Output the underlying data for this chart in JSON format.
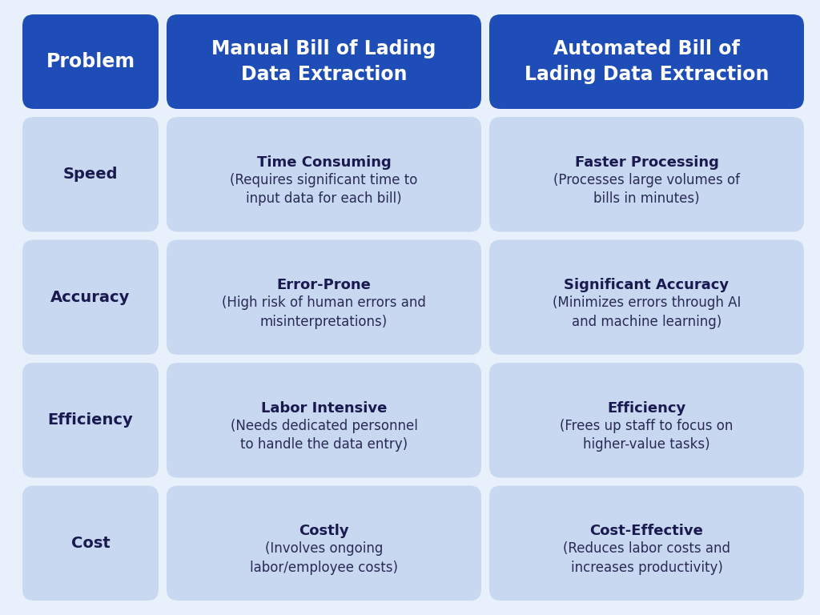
{
  "background_color": "#e8f0fb",
  "header_bg_color": "#1e4db7",
  "header_text_color": "#ffffff",
  "cell_bg_color": "#c8d8f0",
  "cell_text_bold_color": "#1a1a50",
  "cell_text_normal_color": "#2a2a55",
  "col1_label": "Problem",
  "col2_label": "Manual Bill of Lading\nData Extraction",
  "col3_label": "Automated Bill of\nLading Data Extraction",
  "rows": [
    {
      "problem": "Speed",
      "manual_bold": "Time Consuming",
      "manual_detail": "(Requires significant time to\ninput data for each bill)",
      "auto_bold": "Faster Processing",
      "auto_detail": "(Processes large volumes of\nbills in minutes)"
    },
    {
      "problem": "Accuracy",
      "manual_bold": "Error-Prone",
      "manual_detail": "(High risk of human errors and\nmisinterpretations)",
      "auto_bold": "Significant Accuracy",
      "auto_detail": "(Minimizes errors through AI\nand machine learning)"
    },
    {
      "problem": "Efficiency",
      "manual_bold": "Labor Intensive",
      "manual_detail": "(Needs dedicated personnel\nto handle the data entry)",
      "auto_bold": "Efficiency",
      "auto_detail": "(Frees up staff to focus on\nhigher-value tasks)"
    },
    {
      "problem": "Cost",
      "manual_bold": "Costly",
      "manual_detail": "(Involves ongoing\nlabor/employee costs)",
      "auto_bold": "Cost-Effective",
      "auto_detail": "(Reduces labor costs and\nincreases productivity)"
    }
  ]
}
